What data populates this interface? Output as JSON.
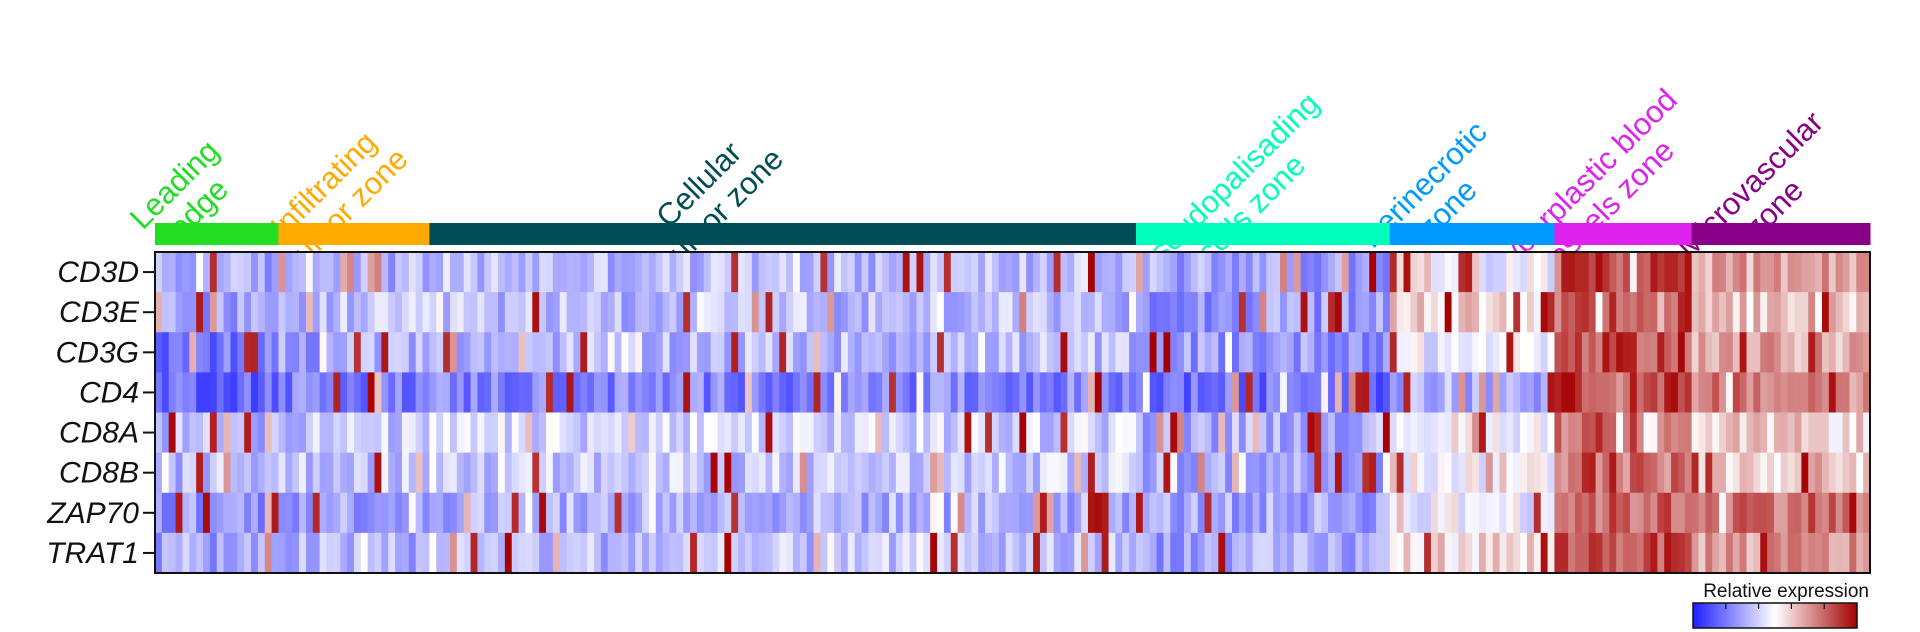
{
  "chart_data": {
    "type": "heatmap",
    "legend": {
      "title": "Relative expression",
      "position": "bottom-right",
      "colors": [
        "#1f1fff",
        "#ffffff",
        "#a50000"
      ]
    },
    "zones": [
      {
        "name": "Leading edge",
        "lines": [
          "Leading",
          "edge"
        ],
        "color": "#22dd22",
        "columns": 18
      },
      {
        "name": "Infiltrating tumor zone",
        "lines": [
          "Infiltrating",
          "tumor zone"
        ],
        "color": "#ffaa00",
        "columns": 22
      },
      {
        "name": "Cellular tumor zone",
        "lines": [
          "Cellular",
          "tumor zone"
        ],
        "color": "#004d55",
        "columns": 103
      },
      {
        "name": "Pseudopalisading cells zone",
        "lines": [
          "Pseudopalisading",
          "cells zone"
        ],
        "color": "#00ffbb",
        "columns": 37
      },
      {
        "name": "Perinecrotic zone",
        "lines": [
          "Perinecrotic",
          "zone"
        ],
        "color": "#0099ff",
        "columns": 24
      },
      {
        "name": "Hyperplastic blood vessels zone",
        "lines": [
          "Hyperplastic blood",
          "vessels zone"
        ],
        "color": "#dd22ee",
        "columns": 20
      },
      {
        "name": "Microvascular zone",
        "lines": [
          "Microvascular",
          "zone"
        ],
        "color": "#880088",
        "columns": 26
      }
    ],
    "genes": [
      "CD3D",
      "CD3E",
      "CD3G",
      "CD4",
      "CD8A",
      "CD8B",
      "ZAP70",
      "TRAT1"
    ],
    "zone_mean_expression": {
      "CD3D": [
        -0.4,
        -0.35,
        -0.3,
        -0.4,
        -0.05,
        0.75,
        0.35
      ],
      "CD3E": [
        -0.45,
        -0.3,
        -0.3,
        -0.45,
        0.15,
        0.7,
        0.2
      ],
      "CD3G": [
        -0.6,
        -0.4,
        -0.3,
        -0.45,
        -0.1,
        0.7,
        0.35
      ],
      "CD4": [
        -0.65,
        -0.55,
        -0.55,
        -0.65,
        -0.35,
        0.75,
        0.5
      ],
      "CD8A": [
        -0.3,
        -0.25,
        -0.2,
        -0.35,
        0.0,
        0.6,
        0.15
      ],
      "CD8B": [
        -0.3,
        -0.25,
        -0.25,
        -0.4,
        0.0,
        0.55,
        0.15
      ],
      "ZAP70": [
        -0.45,
        -0.4,
        -0.35,
        -0.4,
        -0.05,
        0.6,
        0.6
      ],
      "TRAT1": [
        -0.4,
        -0.35,
        -0.3,
        -0.4,
        0.15,
        0.7,
        0.4
      ]
    },
    "color_range": [
      -1,
      1
    ],
    "grid": false
  }
}
